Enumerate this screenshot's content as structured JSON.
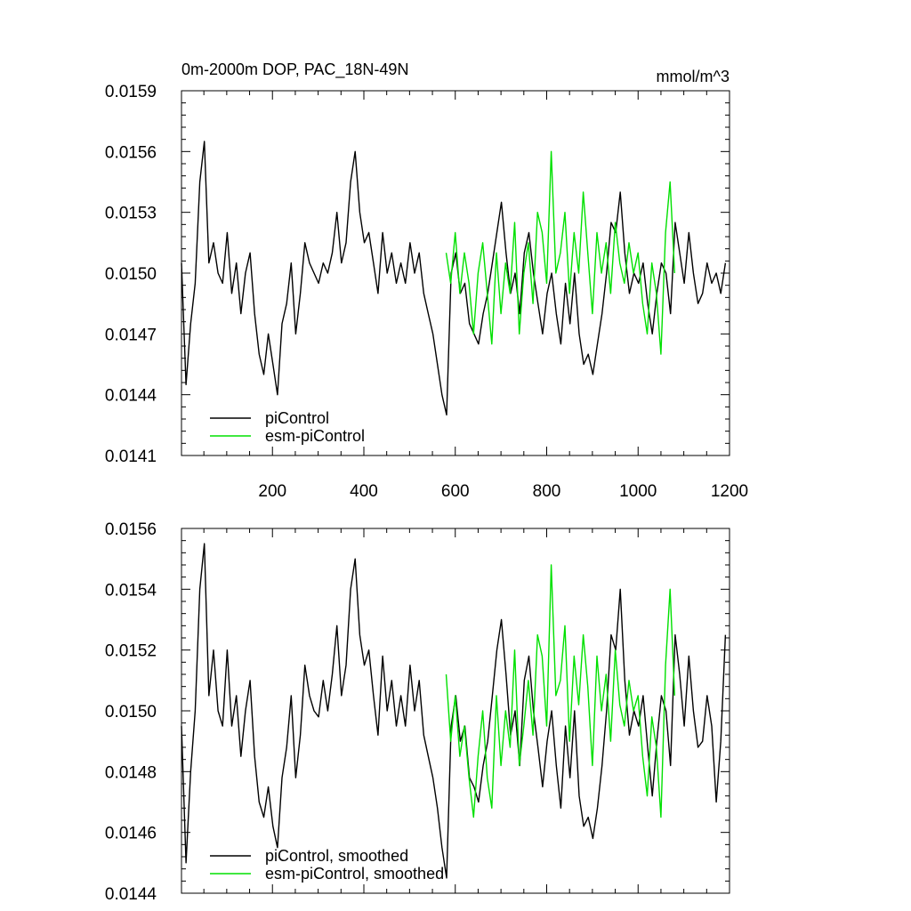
{
  "chart_data": [
    {
      "type": "line",
      "title": "0m-2000m DOP, PAC_18N-49N",
      "units": "mmol/m^3",
      "xlim": [
        1,
        1200
      ],
      "ylim": [
        0.0141,
        0.0159
      ],
      "x_ticks": [
        200,
        400,
        600,
        800,
        1000,
        1200
      ],
      "y_ticks": [
        "0.0141",
        "0.0144",
        "0.0147",
        "0.0150",
        "0.0153",
        "0.0156",
        "0.0159"
      ],
      "legend_position": "bottom-left",
      "series": [
        {
          "name": "piControl",
          "color": "#000000",
          "x_start": 1,
          "x_step": 10,
          "values": [
            0.01505,
            0.01445,
            0.01475,
            0.01495,
            0.01545,
            0.01565,
            0.01505,
            0.01515,
            0.015,
            0.01495,
            0.0152,
            0.0149,
            0.01505,
            0.0148,
            0.015,
            0.0151,
            0.0148,
            0.0146,
            0.0145,
            0.0147,
            0.01455,
            0.0144,
            0.01475,
            0.01485,
            0.01505,
            0.0147,
            0.0149,
            0.01515,
            0.01505,
            0.015,
            0.01495,
            0.01505,
            0.015,
            0.0151,
            0.0153,
            0.01505,
            0.01515,
            0.01545,
            0.0156,
            0.0153,
            0.01515,
            0.0152,
            0.01505,
            0.0149,
            0.0152,
            0.015,
            0.0151,
            0.01495,
            0.01505,
            0.01495,
            0.01515,
            0.015,
            0.0151,
            0.0149,
            0.0148,
            0.0147,
            0.01455,
            0.0144,
            0.0143,
            0.015,
            0.0151,
            0.0149,
            0.01495,
            0.01475,
            0.0147,
            0.01465,
            0.0148,
            0.0149,
            0.01505,
            0.0152,
            0.01535,
            0.0151,
            0.0149,
            0.015,
            0.0148,
            0.0151,
            0.0152,
            0.015,
            0.01485,
            0.0147,
            0.0149,
            0.015,
            0.0148,
            0.01465,
            0.01495,
            0.01475,
            0.015,
            0.0147,
            0.01455,
            0.0146,
            0.0145,
            0.01465,
            0.0148,
            0.015,
            0.01525,
            0.0152,
            0.0154,
            0.0151,
            0.0149,
            0.015,
            0.01495,
            0.01505,
            0.01485,
            0.0147,
            0.0149,
            0.01505,
            0.015,
            0.0148,
            0.01525,
            0.0151,
            0.01495,
            0.0152,
            0.015,
            0.01485,
            0.0149,
            0.01505,
            0.01495,
            0.015,
            0.0149,
            0.01505
          ]
        },
        {
          "name": "esm-piControl",
          "color": "#00e000",
          "x_start": 580,
          "x_step": 10,
          "values": [
            0.0151,
            0.01495,
            0.0152,
            0.0149,
            0.0151,
            0.01495,
            0.0147,
            0.015,
            0.01515,
            0.0149,
            0.01465,
            0.0151,
            0.0148,
            0.01505,
            0.0149,
            0.01525,
            0.0147,
            0.015,
            0.01515,
            0.01485,
            0.0153,
            0.0152,
            0.01495,
            0.0156,
            0.015,
            0.0151,
            0.0153,
            0.0149,
            0.0152,
            0.015,
            0.0154,
            0.0151,
            0.0148,
            0.0152,
            0.015,
            0.01515,
            0.0149,
            0.01525,
            0.01505,
            0.01495,
            0.01515,
            0.015,
            0.0151,
            0.01485,
            0.0147,
            0.01505,
            0.0149,
            0.0146,
            0.0152,
            0.01545,
            0.015
          ]
        }
      ]
    },
    {
      "type": "line",
      "xlim": [
        1,
        1200
      ],
      "ylim": [
        0.0144,
        0.0156
      ],
      "y_ticks": [
        "0.0144",
        "0.0146",
        "0.0148",
        "0.0150",
        "0.0152",
        "0.0154",
        "0.0156"
      ],
      "legend_position": "bottom-left",
      "series": [
        {
          "name": "piControl, smoothed",
          "color": "#000000",
          "x_start": 1,
          "x_step": 10,
          "values": [
            0.01495,
            0.0145,
            0.0148,
            0.015,
            0.0154,
            0.01555,
            0.01505,
            0.0152,
            0.015,
            0.01495,
            0.0152,
            0.01495,
            0.01505,
            0.01485,
            0.015,
            0.0151,
            0.01485,
            0.0147,
            0.01465,
            0.01475,
            0.01462,
            0.01455,
            0.01478,
            0.01488,
            0.01505,
            0.01478,
            0.01492,
            0.01515,
            0.01505,
            0.015,
            0.01498,
            0.0151,
            0.015,
            0.01512,
            0.01528,
            0.01505,
            0.01515,
            0.0154,
            0.0155,
            0.01525,
            0.01515,
            0.0152,
            0.01505,
            0.01492,
            0.01518,
            0.015,
            0.0151,
            0.01495,
            0.01505,
            0.01495,
            0.01515,
            0.015,
            0.0151,
            0.01492,
            0.01485,
            0.01478,
            0.01468,
            0.01455,
            0.01445,
            0.01495,
            0.01505,
            0.0149,
            0.01495,
            0.01478,
            0.01475,
            0.0147,
            0.01482,
            0.0149,
            0.01505,
            0.0152,
            0.0153,
            0.01512,
            0.01492,
            0.015,
            0.01482,
            0.0151,
            0.01518,
            0.015,
            0.01488,
            0.01475,
            0.0149,
            0.015,
            0.01482,
            0.01468,
            0.01495,
            0.01478,
            0.015,
            0.01472,
            0.01462,
            0.01465,
            0.01458,
            0.01468,
            0.01482,
            0.015,
            0.01525,
            0.0152,
            0.0154,
            0.0151,
            0.01492,
            0.015,
            0.01495,
            0.01505,
            0.01488,
            0.01472,
            0.0149,
            0.01505,
            0.015,
            0.01482,
            0.01525,
            0.01512,
            0.01495,
            0.01518,
            0.015,
            0.01488,
            0.0149,
            0.01505,
            0.01495,
            0.0147,
            0.0149,
            0.01525
          ]
        },
        {
          "name": "esm-piControl, smoothed",
          "color": "#00e000",
          "x_start": 580,
          "x_step": 10,
          "values": [
            0.01512,
            0.0149,
            0.01505,
            0.01485,
            0.01495,
            0.01478,
            0.01465,
            0.01485,
            0.015,
            0.01478,
            0.01468,
            0.01505,
            0.01482,
            0.015,
            0.01488,
            0.0152,
            0.01482,
            0.01495,
            0.0151,
            0.01492,
            0.01525,
            0.01518,
            0.01495,
            0.01548,
            0.01505,
            0.0151,
            0.01528,
            0.0149,
            0.01518,
            0.01502,
            0.01525,
            0.01508,
            0.01482,
            0.01518,
            0.015,
            0.01512,
            0.0149,
            0.0152,
            0.01502,
            0.01495,
            0.0151,
            0.015,
            0.01505,
            0.01485,
            0.01472,
            0.01498,
            0.01488,
            0.01465,
            0.01515,
            0.0154,
            0.01505
          ]
        }
      ]
    }
  ]
}
